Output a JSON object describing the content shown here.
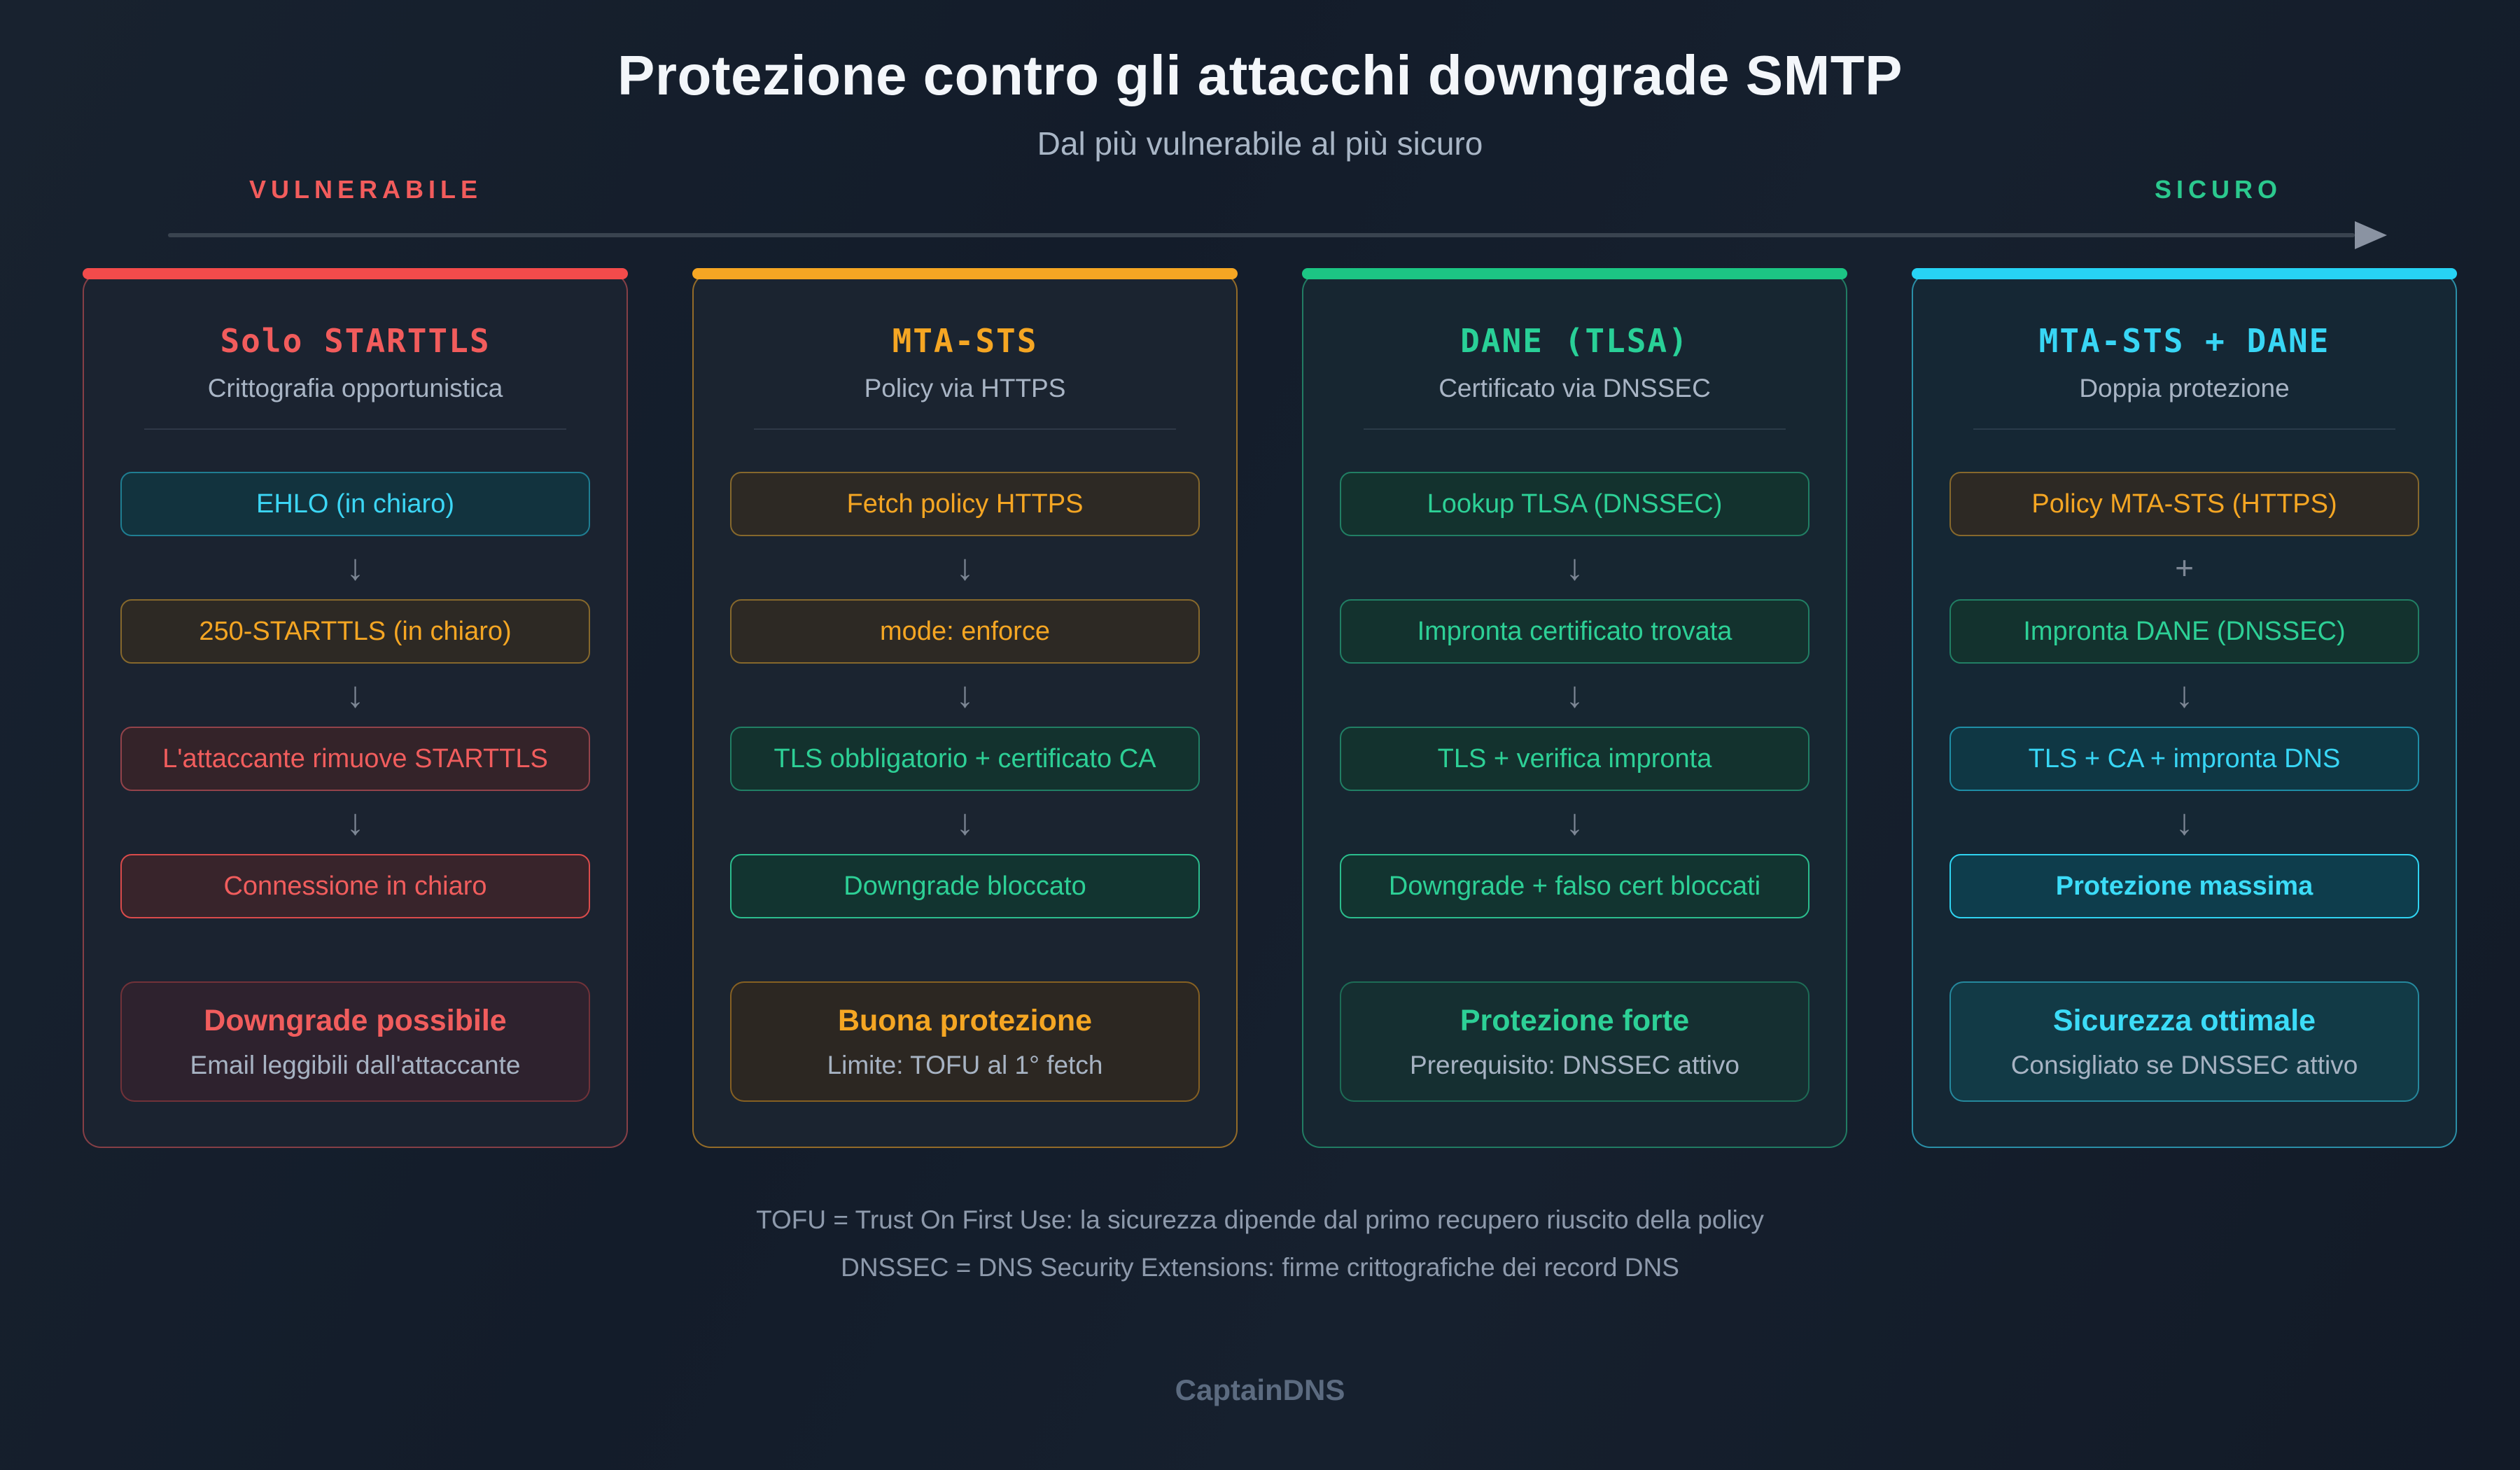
{
  "page": {
    "title": "Protezione contro gli attacchi downgrade SMTP",
    "subtitle": "Dal più vulnerabile al più sicuro",
    "brand": "CaptainDNS",
    "footnotes": [
      "TOFU = Trust On First Use: la sicurezza dipende dal primo recupero riuscito della policy",
      "DNSSEC = DNS Security Extensions: firme crittografiche dei record DNS"
    ]
  },
  "axis": {
    "left_label": "VULNERABILE",
    "right_label": "SICURO"
  },
  "glyphs": {
    "arrow": "↓",
    "plus": "+"
  },
  "palette": {
    "background": "#141d2b",
    "card_background": "#1a2432",
    "red": "#f25c5c",
    "orange": "#f5a623",
    "green": "#2bd196",
    "cyan": "#38d6f5",
    "muted_text": "#a9b5c5",
    "arrow_gray": "#7d8795"
  },
  "columns": [
    {
      "title": "Solo STARTTLS",
      "subtitle": "Crittografia opportunistica",
      "accent": "#f24b4b",
      "steps": [
        {
          "label": "EHLO (in chiaro)"
        },
        {
          "label": "250-STARTTLS (in chiaro)"
        },
        {
          "label": "L'attaccante rimuove STARTTLS"
        },
        {
          "label": "Connessione in chiaro"
        }
      ],
      "verdict": {
        "title": "Downgrade possibile",
        "subtitle": "Email leggibili dall'attaccante"
      }
    },
    {
      "title": "MTA-STS",
      "subtitle": "Policy via HTTPS",
      "accent": "#f5a623",
      "steps": [
        {
          "label": "Fetch policy HTTPS"
        },
        {
          "label": "mode: enforce"
        },
        {
          "label": "TLS obbligatorio + certificato CA"
        },
        {
          "label": "Downgrade bloccato"
        }
      ],
      "verdict": {
        "title": "Buona protezione",
        "subtitle": "Limite: TOFU al 1° fetch"
      }
    },
    {
      "title": "DANE (TLSA)",
      "subtitle": "Certificato via DNSSEC",
      "accent": "#1cc584",
      "steps": [
        {
          "label": "Lookup TLSA (DNSSEC)"
        },
        {
          "label": "Impronta certificato trovata"
        },
        {
          "label": "TLS + verifica impronta"
        },
        {
          "label": "Downgrade + falso cert bloccati"
        }
      ],
      "verdict": {
        "title": "Protezione forte",
        "subtitle": "Prerequisito: DNSSEC attivo"
      }
    },
    {
      "title": "MTA-STS + DANE",
      "subtitle": "Doppia protezione",
      "accent": "#27d3f4",
      "steps": [
        {
          "label": "Policy MTA-STS (HTTPS)"
        },
        {
          "label": "Impronta DANE (DNSSEC)"
        },
        {
          "label": "TLS + CA + impronta DNS"
        },
        {
          "label": "Protezione massima"
        }
      ],
      "verdict": {
        "title": "Sicurezza ottimale",
        "subtitle": "Consigliato se DNSSEC attivo"
      }
    }
  ]
}
